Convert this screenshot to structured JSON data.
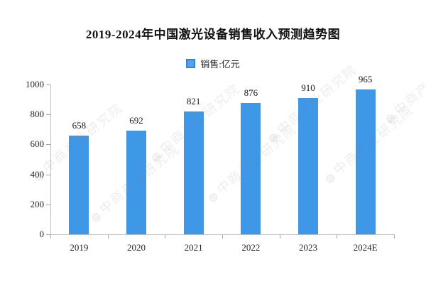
{
  "title": "2019-2024年中国激光设备销售收入预测趋势图",
  "legend": {
    "label": "销售:亿元",
    "marker_color": "#3F97E8"
  },
  "watermark": {
    "text": "中商产业研究院",
    "logo_icon": "circle-logo-icon"
  },
  "colors": {
    "bar": "#3F97E8",
    "axis": "#BFBFBF",
    "tick": "#A6A6A6",
    "text": "#262626"
  },
  "chart_data": {
    "type": "bar",
    "title": "2019-2024年中国激光设备销售收入预测趋势图",
    "categories": [
      "2019",
      "2020",
      "2021",
      "2022",
      "2023",
      "2024E"
    ],
    "series": [
      {
        "name": "销售:亿元",
        "values": [
          658,
          692,
          821,
          876,
          910,
          965
        ]
      }
    ],
    "values": [
      658,
      692,
      821,
      876,
      910,
      965
    ],
    "data_labels": [
      658,
      692,
      821,
      876,
      910,
      965
    ],
    "xlabel": "",
    "ylabel": "",
    "ylim": [
      0,
      1000
    ],
    "yticks": [
      0,
      200,
      400,
      600,
      800,
      1000
    ],
    "grid": false,
    "legend_position": "top-center",
    "bar_color": "#3F97E8"
  }
}
